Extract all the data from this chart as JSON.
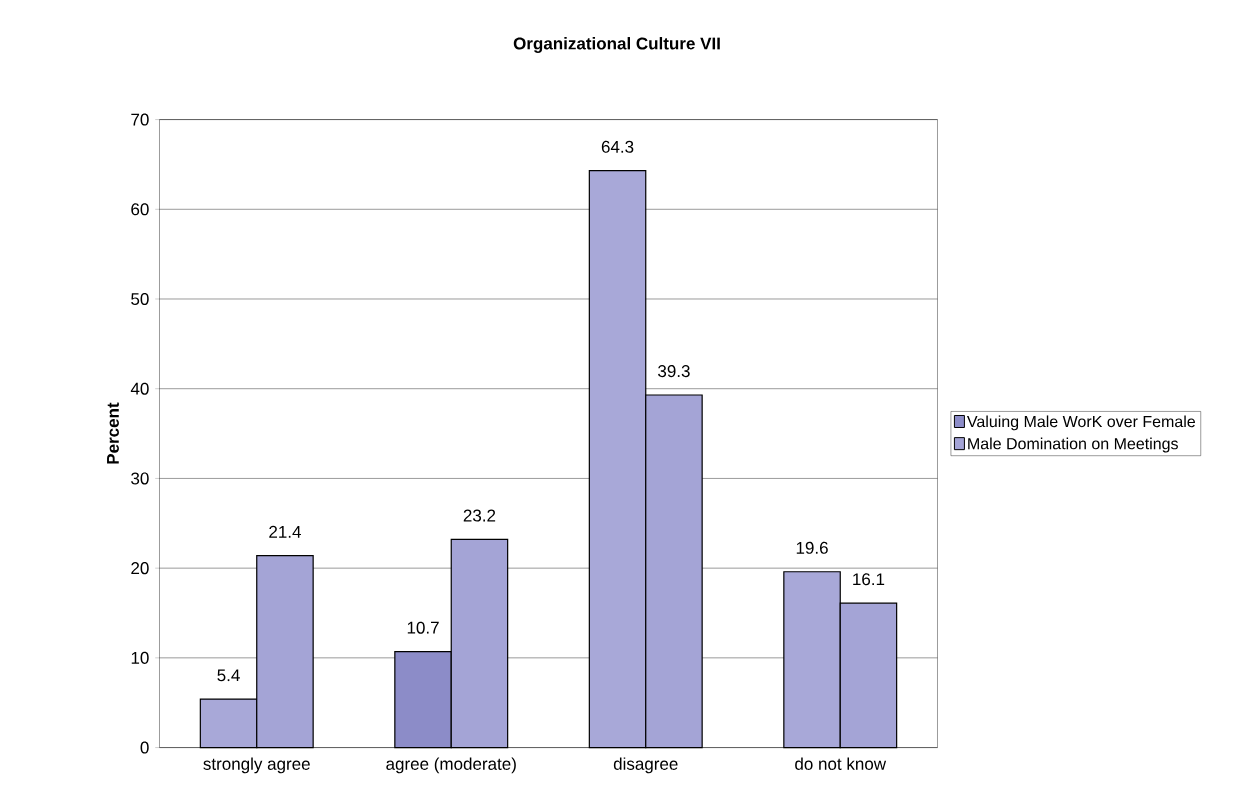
{
  "chart_data": {
    "type": "bar",
    "title": "Organizational Culture VII",
    "ylabel": "Percent",
    "categories": [
      "strongly agree",
      "agree (moderate)",
      "disagree",
      "do not know"
    ],
    "series": [
      {
        "name": "Valuing Male WorK over Female",
        "color": "#8c8cc8",
        "colors": [
          "#a8a8d8",
          "#8c8cc8",
          "#a8a8d8",
          "#a8a8d8"
        ],
        "values": [
          5.4,
          10.7,
          64.3,
          19.6
        ]
      },
      {
        "name": "Male Domination on Meetings",
        "color": "#a4a4d6",
        "values": [
          21.4,
          23.2,
          39.3,
          16.1
        ]
      }
    ],
    "ylim": [
      0,
      70
    ],
    "yticks": [
      0,
      10,
      20,
      30,
      40,
      50,
      60,
      70
    ],
    "grid": "y",
    "legend": "right",
    "data_labels": true
  }
}
